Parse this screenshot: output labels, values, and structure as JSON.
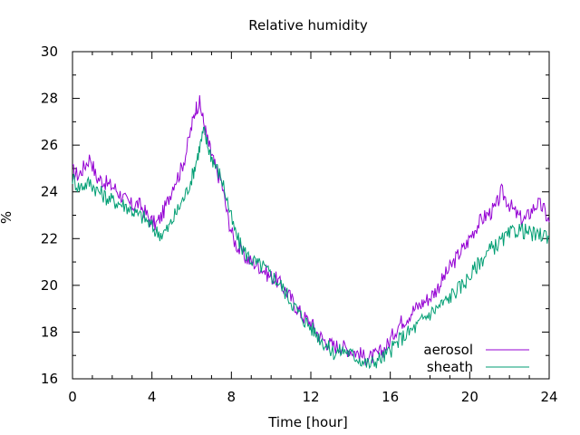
{
  "chart_data": {
    "type": "line",
    "title": "Relative humidity",
    "xlabel": "Time [hour]",
    "ylabel": "%",
    "xlim": [
      0,
      24
    ],
    "ylim": [
      16,
      30
    ],
    "xticks": [
      0,
      4,
      8,
      12,
      16,
      20,
      24
    ],
    "yticks": [
      16,
      18,
      20,
      22,
      24,
      26,
      28,
      30
    ],
    "grid": false,
    "legend": "bottom-right",
    "series": [
      {
        "name": "aerosol",
        "color": "#9400d3",
        "x": [
          0,
          0.3,
          0.6,
          0.9,
          1.2,
          1.5,
          1.8,
          2.1,
          2.4,
          2.7,
          3.0,
          3.3,
          3.6,
          3.9,
          4.2,
          4.5,
          4.8,
          5.1,
          5.4,
          5.7,
          6.0,
          6.2,
          6.4,
          6.6,
          6.8,
          7.0,
          7.2,
          7.5,
          7.8,
          8.1,
          8.4,
          8.7,
          9.0,
          9.3,
          9.6,
          9.9,
          10.2,
          10.5,
          10.8,
          11.1,
          11.4,
          11.7,
          12.0,
          12.3,
          12.6,
          12.9,
          13.2,
          13.5,
          13.8,
          14.1,
          14.4,
          14.7,
          15.0,
          15.3,
          15.6,
          15.9,
          16.2,
          16.5,
          16.8,
          17.1,
          17.4,
          17.7,
          18.0,
          18.3,
          18.6,
          18.9,
          19.2,
          19.5,
          19.8,
          20.1,
          20.4,
          20.7,
          21.0,
          21.3,
          21.6,
          21.9,
          22.2,
          22.5,
          22.8,
          23.1,
          23.4,
          23.7,
          24.0
        ],
        "values": [
          24.9,
          24.7,
          25.1,
          25.5,
          24.6,
          24.5,
          24.3,
          24.2,
          23.9,
          23.6,
          23.4,
          23.5,
          23.2,
          22.8,
          22.6,
          23.0,
          23.6,
          24.4,
          24.8,
          25.6,
          26.8,
          27.6,
          27.8,
          27.0,
          26.2,
          25.6,
          25.0,
          24.4,
          23.0,
          22.0,
          21.5,
          21.2,
          21.0,
          20.9,
          20.7,
          20.4,
          20.3,
          20.0,
          19.7,
          19.3,
          18.9,
          18.6,
          18.4,
          18.0,
          17.7,
          17.5,
          17.4,
          17.4,
          17.3,
          17.2,
          17.1,
          16.9,
          16.9,
          17.0,
          17.2,
          17.5,
          18.0,
          18.4,
          18.6,
          18.9,
          19.1,
          19.3,
          19.5,
          19.8,
          20.2,
          20.6,
          21.0,
          21.4,
          21.7,
          22.2,
          22.6,
          22.9,
          23.1,
          23.3,
          24.0,
          23.6,
          23.2,
          22.9,
          22.8,
          23.2,
          23.5,
          23.3,
          22.7
        ]
      },
      {
        "name": "sheath",
        "color": "#009e73",
        "x": [
          0,
          0.3,
          0.6,
          0.9,
          1.2,
          1.5,
          1.8,
          2.1,
          2.4,
          2.7,
          3.0,
          3.3,
          3.6,
          3.9,
          4.2,
          4.5,
          4.8,
          5.1,
          5.4,
          5.7,
          6.0,
          6.2,
          6.4,
          6.6,
          6.8,
          7.0,
          7.2,
          7.5,
          7.8,
          8.1,
          8.4,
          8.7,
          9.0,
          9.3,
          9.6,
          9.9,
          10.2,
          10.5,
          10.8,
          11.1,
          11.4,
          11.7,
          12.0,
          12.3,
          12.6,
          12.9,
          13.2,
          13.5,
          13.8,
          14.1,
          14.4,
          14.7,
          15.0,
          15.3,
          15.6,
          15.9,
          16.2,
          16.5,
          16.8,
          17.1,
          17.4,
          17.7,
          18.0,
          18.3,
          18.6,
          18.9,
          19.2,
          19.5,
          19.8,
          20.1,
          20.4,
          20.7,
          21.0,
          21.3,
          21.6,
          21.9,
          22.2,
          22.5,
          22.8,
          23.1,
          23.4,
          23.7,
          24.0
        ],
        "values": [
          24.6,
          24.2,
          24.3,
          24.4,
          24.1,
          23.9,
          23.7,
          23.6,
          23.5,
          23.4,
          23.2,
          23.0,
          22.9,
          22.6,
          22.3,
          22.2,
          22.4,
          22.9,
          23.4,
          23.9,
          24.6,
          25.2,
          25.9,
          26.6,
          26.0,
          25.5,
          25.1,
          24.6,
          23.6,
          22.5,
          21.8,
          21.4,
          21.1,
          20.9,
          20.8,
          20.5,
          20.3,
          20.0,
          19.6,
          19.2,
          18.8,
          18.5,
          18.2,
          17.9,
          17.6,
          17.3,
          17.1,
          17.2,
          17.2,
          17.0,
          16.9,
          16.7,
          16.6,
          16.8,
          16.9,
          17.1,
          17.4,
          17.7,
          17.9,
          18.1,
          18.3,
          18.6,
          18.8,
          19.0,
          19.2,
          19.4,
          19.7,
          19.9,
          20.2,
          20.5,
          20.9,
          21.2,
          21.5,
          21.7,
          21.9,
          22.1,
          22.3,
          22.4,
          22.3,
          22.2,
          22.1,
          22.2,
          22.1
        ]
      }
    ]
  }
}
